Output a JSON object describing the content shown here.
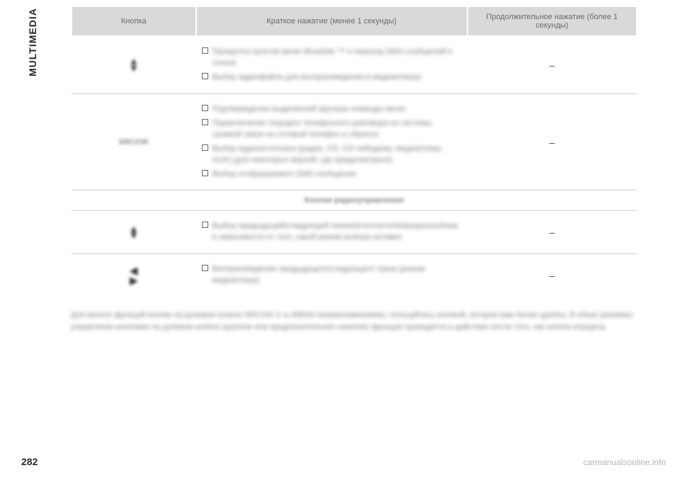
{
  "page": {
    "sidebar_label": "MULTIMEDIA",
    "page_number": "282",
    "footer_link": "carmanualsonline.info"
  },
  "table": {
    "header": {
      "col1": "Кнопка",
      "col2": "Краткое нажатие (менее 1 секунды)",
      "col3": "Продолжительное нажатие (более 1 секунды)"
    },
    "rows": [
      {
        "btn_type": "updown",
        "short_items": [
          "Прокрутка пунктов меню Blue&Me ™ и переход SMS-сообщений в списке",
          "Выбор аудиофайла для воспроизведения в медиаплеере"
        ],
        "long": "–"
      },
      {
        "btn_label": "SRC/OK",
        "short_items": [
          "Подтверждение выделенной вручную команды меню",
          "Переключение текущего телефонного разговора из системы громкой связи на сотовый телефон и обратно",
          "Выбор аудиоисточника (радио, CD, CD-чейнджер, медиаплеер, AUX) (для некоторых версий, где предусмотрено)",
          "Выбор отображаемого SMS-сообщения"
        ],
        "long": "–"
      }
    ],
    "section_header": "Кнопки радиоуправления",
    "rows2": [
      {
        "btn_type": "updown",
        "short_items": [
          "Выбор предыдущей/следующей папки/исполнителя/жанра/альбома в зависимости от того, какой режим выбора активен"
        ],
        "long": "–"
      },
      {
        "btn_type": "leftright",
        "short_items": [
          "Воспроизведение предыдущего/следующего трека (режим медиаплеер)"
        ],
        "long": "–"
      }
    ],
    "footnote": "Для многих функций кнопки на рулевом колесе SRC/OK и ℡/MENU взаимозаменяемы: пользуйтесь кнопкой, которая вам более удобна. В обоих режимах управления кнопками на рулевом колесе (краткое или продолжительное нажатие) функция приводится в действие после того, как кнопка опущена."
  },
  "styling": {
    "page_bg": "#ffffff",
    "header_bg": "#d9d9d9",
    "header_text_color": "#6a6a6a",
    "body_text_color": "#3a3a3a",
    "blur_text_color": "#7a7a7a",
    "border_color": "#d0d0d0",
    "font_family": "Arial",
    "header_fontsize": 11,
    "body_fontsize": 11,
    "sidebar_fontsize": 14,
    "col_widths_pct": [
      22,
      48,
      30
    ]
  }
}
